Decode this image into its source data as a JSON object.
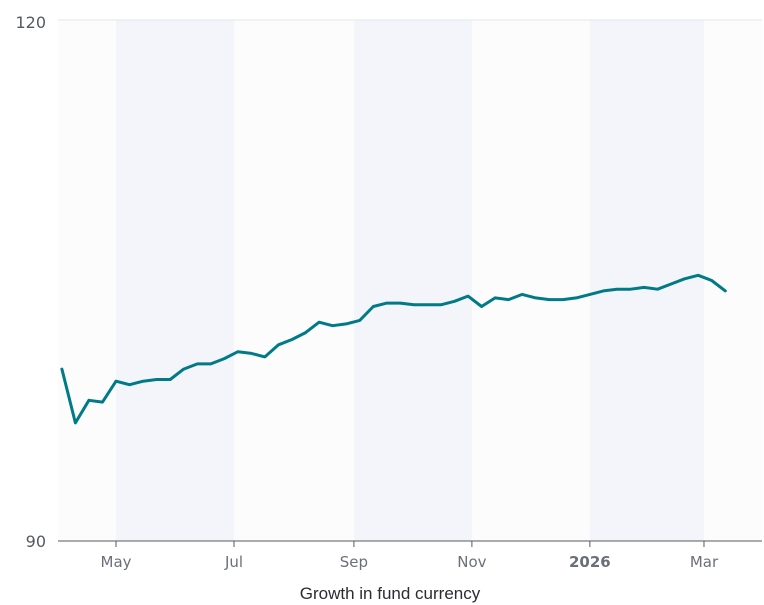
{
  "chart_data": {
    "type": "line",
    "title": "",
    "xlabel": "Growth in fund currency",
    "ylabel": "",
    "ylim": [
      90,
      120
    ],
    "y_ticks": [
      "120",
      "90"
    ],
    "x_ticks": [
      {
        "label": "May",
        "bold": false
      },
      {
        "label": "Jul",
        "bold": false
      },
      {
        "label": "Sep",
        "bold": false
      },
      {
        "label": "Nov",
        "bold": false
      },
      {
        "label": "2026",
        "bold": true
      },
      {
        "label": "Mar",
        "bold": false
      }
    ],
    "grid": false,
    "legend": "none",
    "series": [
      {
        "color": "#007a87",
        "x": [
          "2025-04-03",
          "2025-04-10",
          "2025-04-17",
          "2025-04-24",
          "2025-05-01",
          "2025-05-08",
          "2025-05-15",
          "2025-05-22",
          "2025-05-29",
          "2025-06-05",
          "2025-06-12",
          "2025-06-19",
          "2025-06-26",
          "2025-07-03",
          "2025-07-10",
          "2025-07-17",
          "2025-07-24",
          "2025-07-31",
          "2025-08-07",
          "2025-08-14",
          "2025-08-21",
          "2025-08-28",
          "2025-09-04",
          "2025-09-11",
          "2025-09-18",
          "2025-09-25",
          "2025-10-02",
          "2025-10-09",
          "2025-10-16",
          "2025-10-23",
          "2025-10-30",
          "2025-11-06",
          "2025-11-13",
          "2025-11-20",
          "2025-11-27",
          "2025-12-04",
          "2025-12-11",
          "2025-12-18",
          "2025-12-25",
          "2026-01-01",
          "2026-01-08",
          "2026-01-15",
          "2026-01-22",
          "2026-01-29",
          "2026-02-05",
          "2026-02-12",
          "2026-02-19",
          "2026-02-26",
          "2026-03-05",
          "2026-03-12"
        ],
        "y": [
          99.9,
          96.8,
          98.1,
          98.0,
          99.2,
          99.0,
          99.2,
          99.3,
          99.3,
          99.9,
          100.2,
          100.2,
          100.5,
          100.9,
          100.8,
          100.6,
          101.3,
          101.6,
          102.0,
          102.6,
          102.4,
          102.5,
          102.7,
          103.5,
          103.7,
          103.7,
          103.6,
          103.6,
          103.6,
          103.8,
          104.1,
          103.5,
          104.0,
          103.9,
          104.2,
          104.0,
          103.9,
          103.9,
          104.0,
          104.2,
          104.4,
          104.5,
          104.5,
          104.6,
          104.5,
          104.8,
          105.1,
          105.3,
          105.0,
          104.4
        ]
      }
    ]
  }
}
